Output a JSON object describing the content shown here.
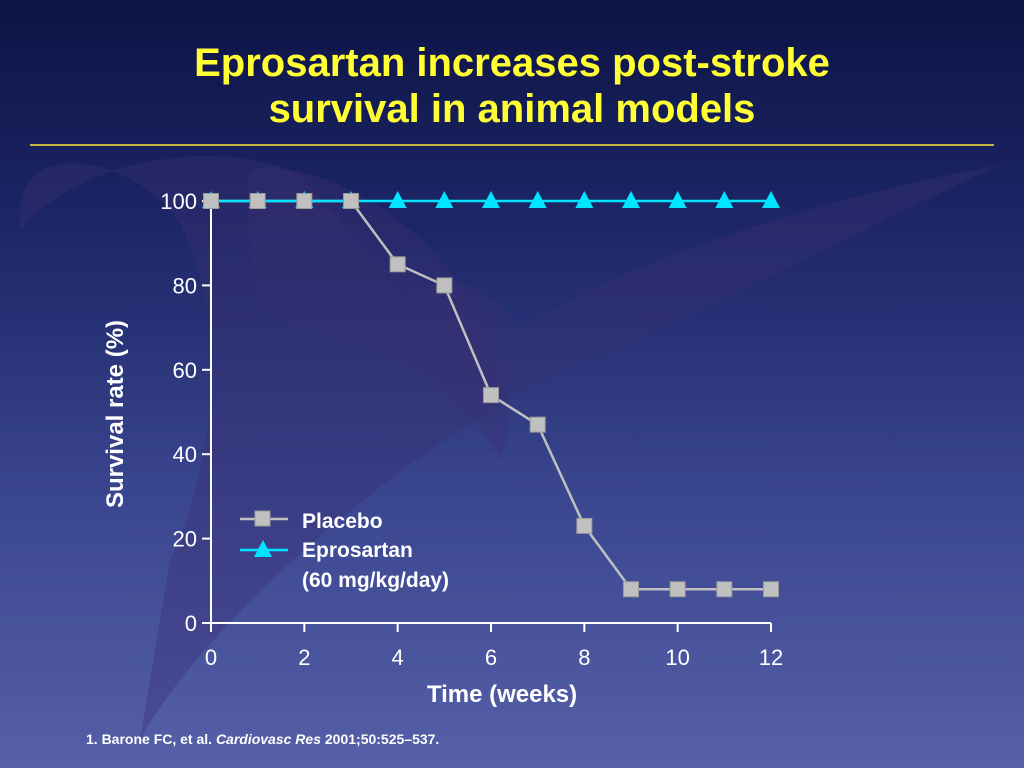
{
  "slide": {
    "title_line1": "Eprosartan increases post-stroke",
    "title_line2": "survival in animal models"
  },
  "footnote": {
    "prefix": "1. Barone FC, et al. ",
    "journal": "Cardiovasc Res",
    "suffix": " 2001;50:525–537."
  },
  "colors": {
    "title": "#ffff33",
    "placebo": "#c0c0c0",
    "eprosartan": "#00e5ff"
  },
  "chart_data": {
    "type": "line",
    "title": "",
    "xlabel": "Time (weeks)",
    "ylabel": "Survival rate (%)",
    "xlim": [
      0,
      12
    ],
    "ylim": [
      0,
      100
    ],
    "xticks": [
      "0",
      "2",
      "4",
      "6",
      "8",
      "10",
      "12"
    ],
    "yticks": [
      "0",
      "20",
      "40",
      "60",
      "80",
      "100"
    ],
    "grid": false,
    "legend_position": "lower-left inside",
    "series": [
      {
        "name": "Placebo",
        "marker": "square",
        "color": "#c0c0c0",
        "x": [
          0,
          1,
          2,
          3,
          4,
          5,
          6,
          7,
          8,
          9,
          10,
          11,
          12
        ],
        "y": [
          100,
          100,
          100,
          100,
          85,
          80,
          54,
          47,
          23,
          8,
          8,
          8,
          8
        ]
      },
      {
        "name": "Eprosartan",
        "name_line2": "(60 mg/kg/day)",
        "marker": "triangle",
        "color": "#00e5ff",
        "x": [
          0,
          1,
          2,
          3,
          4,
          5,
          6,
          7,
          8,
          9,
          10,
          11,
          12
        ],
        "y": [
          100,
          100,
          100,
          100,
          100,
          100,
          100,
          100,
          100,
          100,
          100,
          100,
          100
        ]
      }
    ]
  }
}
